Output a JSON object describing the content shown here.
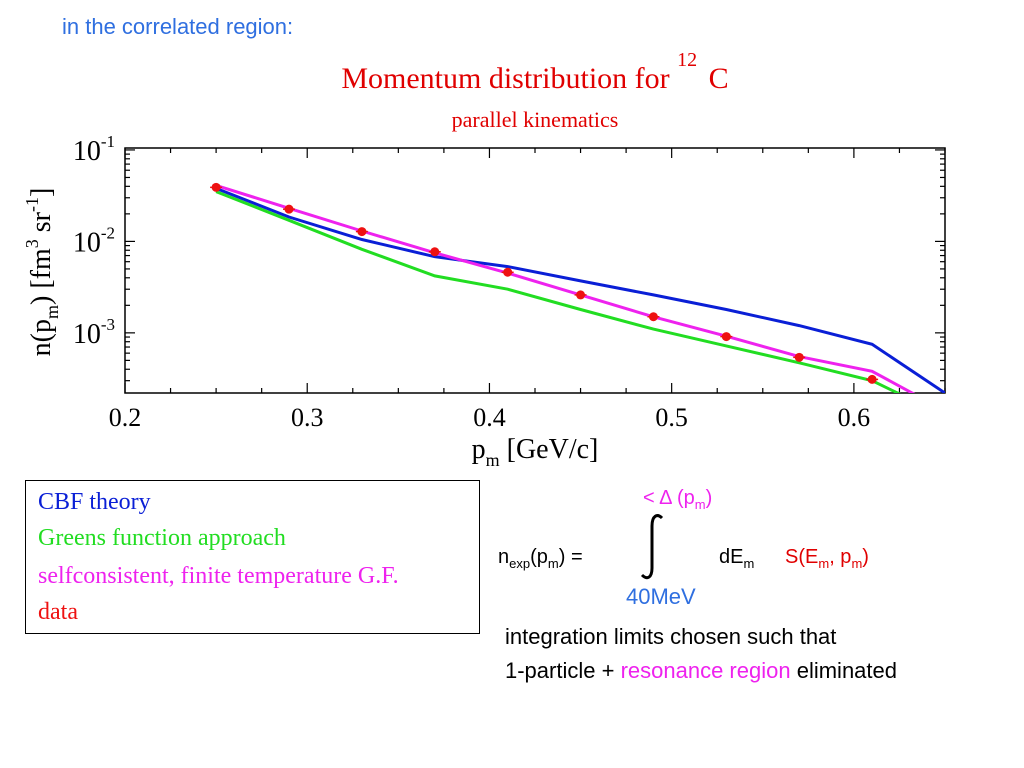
{
  "header_note": "in the correlated region:",
  "chart_data": {
    "type": "line",
    "title": {
      "text": "Momentum distribution for",
      "sup": "12",
      "element": "C"
    },
    "subtitle": "parallel kinematics",
    "xlabel": {
      "base": "p",
      "sub": "m",
      "rest": " [GeV/c]"
    },
    "ylabel": {
      "a": "n(p",
      "a_sub": "m",
      "b": ") [fm",
      "b_sup": "3",
      "c": " sr",
      "c_sup": "-1",
      "d": "]"
    },
    "x_ticks": [
      "0.2",
      "0.3",
      "0.4",
      "0.5",
      "0.6"
    ],
    "xlim": [
      0.2,
      0.65
    ],
    "ylim": [
      0.00022,
      0.105
    ],
    "log_y": true,
    "y_ticks": [
      {
        "base": "10",
        "exp": "-1",
        "value": 0.1
      },
      {
        "base": "10",
        "exp": "-2",
        "value": 0.01
      },
      {
        "base": "10",
        "exp": "-3",
        "value": 0.001
      }
    ],
    "series": [
      {
        "name": "CBF theory",
        "color": "#0a1fd6",
        "x": [
          0.25,
          0.29,
          0.33,
          0.37,
          0.41,
          0.45,
          0.49,
          0.53,
          0.57,
          0.61,
          0.65
        ],
        "y": [
          0.038,
          0.0185,
          0.0105,
          0.0068,
          0.0053,
          0.0037,
          0.0026,
          0.0018,
          0.0012,
          0.00075,
          0.00022
        ]
      },
      {
        "name": "Greens function approach",
        "color": "#22dd22",
        "x": [
          0.25,
          0.29,
          0.33,
          0.37,
          0.41,
          0.45,
          0.49,
          0.53,
          0.57,
          0.61,
          0.633
        ],
        "y": [
          0.035,
          0.017,
          0.0082,
          0.0042,
          0.003,
          0.0018,
          0.0011,
          0.00072,
          0.00047,
          0.0003,
          0.00018
        ]
      },
      {
        "name": "selfconsistent, finite temperature G.F.",
        "color": "#ee22ee",
        "x": [
          0.25,
          0.29,
          0.33,
          0.37,
          0.41,
          0.45,
          0.49,
          0.53,
          0.57,
          0.61,
          0.64
        ],
        "y": [
          0.041,
          0.023,
          0.013,
          0.0075,
          0.0045,
          0.0026,
          0.0015,
          0.00092,
          0.00055,
          0.00038,
          0.00018
        ]
      },
      {
        "name": "data",
        "color": "#ee1111",
        "marker": "circle",
        "x": [
          0.25,
          0.29,
          0.33,
          0.37,
          0.41,
          0.45,
          0.49,
          0.53,
          0.57,
          0.61
        ],
        "y": [
          0.039,
          0.0225,
          0.0128,
          0.0077,
          0.0046,
          0.0026,
          0.0015,
          0.00091,
          0.00054,
          0.00031
        ]
      }
    ]
  },
  "legend_items": [
    "CBF theory",
    "Greens function approach",
    "selfconsistent, finite temperature G.F.",
    "data"
  ],
  "formula": {
    "lhs": "n",
    "lhs_sub": "exp",
    "lhs_arg": "(p",
    "lhs_arg_sub": "m",
    "lhs_close": ") =",
    "upper": "< Δ (p",
    "upper_sub": "m",
    "upper_close": ")",
    "lower": "40MeV",
    "de": "dE",
    "de_sub": "m",
    "s": "S(E",
    "s_sub": "m",
    "s_mid": ", p",
    "s_sub2": "m",
    "s_close": ")"
  },
  "note": {
    "line1": "integration limits chosen such that",
    "line2_a": "1-particle +",
    "line2_b": "resonance region",
    "line2_c": "eliminated",
    "highlight_color": "#ee22ee"
  }
}
